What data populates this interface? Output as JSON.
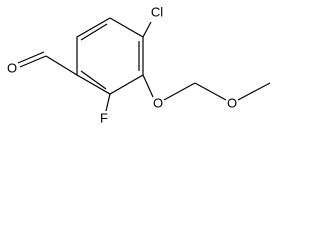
{
  "labels": [
    "Cl",
    "O",
    "F",
    "O",
    "O"
  ]
}
